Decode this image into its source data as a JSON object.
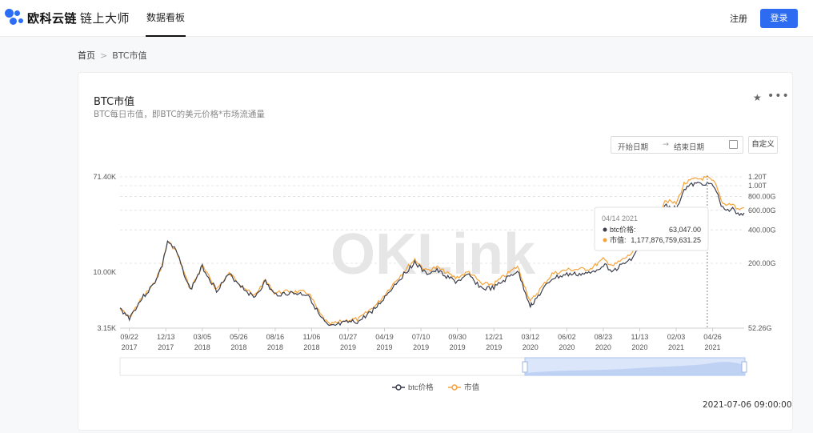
{
  "header": {
    "logo_text": "欧科云链",
    "logo_sub": "链上大师",
    "nav_tab": "数据看板",
    "register_label": "注册",
    "login_label": "登录"
  },
  "breadcrumb": {
    "home": "首页",
    "separator": ">",
    "current": "BTC市值"
  },
  "card": {
    "title": "BTC市值",
    "subtitle": "BTC每日市值，即BTC的美元价格*市场流通量",
    "date_start_placeholder": "开始日期",
    "date_arrow": "→",
    "date_end_placeholder": "结束日期",
    "custom_label": "自定义",
    "timestamp": "2021-07-06 09:00:00",
    "watermark": "OKLink"
  },
  "colors": {
    "accent": "#2d6bf0",
    "btc_price": "#3b3f4f",
    "market_cap": "#f5a33a"
  },
  "chart_data": {
    "type": "line",
    "log_scale": true,
    "grid": "horizontal-dashed",
    "legend_position": "bottom-center",
    "y_left": {
      "ticks": [
        "71.40K",
        "10.00K",
        "3.15K"
      ],
      "range": [
        3150,
        71400
      ]
    },
    "y_right": {
      "ticks": [
        "1.20T",
        "1.00T",
        "800.00G",
        "600.00G",
        "400.00G",
        "200.00G",
        "52.26G"
      ],
      "range": [
        52.26,
        1200
      ]
    },
    "x_ticks": [
      {
        "d": "09/22",
        "y": "2017"
      },
      {
        "d": "12/13",
        "y": "2017"
      },
      {
        "d": "03/05",
        "y": "2018"
      },
      {
        "d": "05/26",
        "y": "2018"
      },
      {
        "d": "08/16",
        "y": "2018"
      },
      {
        "d": "11/06",
        "y": "2018"
      },
      {
        "d": "01/27",
        "y": "2019"
      },
      {
        "d": "04/19",
        "y": "2019"
      },
      {
        "d": "07/10",
        "y": "2019"
      },
      {
        "d": "09/30",
        "y": "2019"
      },
      {
        "d": "12/21",
        "y": "2019"
      },
      {
        "d": "03/12",
        "y": "2020"
      },
      {
        "d": "06/02",
        "y": "2020"
      },
      {
        "d": "08/23",
        "y": "2020"
      },
      {
        "d": "11/13",
        "y": "2020"
      },
      {
        "d": "02/03",
        "y": "2021"
      },
      {
        "d": "04/26",
        "y": "2021"
      }
    ],
    "series": [
      {
        "name": "btc价格",
        "x": [
          "2017-09-01",
          "2017-09-22",
          "2017-10-20",
          "2017-11-15",
          "2017-12-05",
          "2017-12-17",
          "2018-01-05",
          "2018-02-06",
          "2018-03-05",
          "2018-04-06",
          "2018-05-05",
          "2018-06-29",
          "2018-07-25",
          "2018-08-14",
          "2018-09-20",
          "2018-10-30",
          "2018-11-25",
          "2018-12-15",
          "2019-01-27",
          "2019-02-20",
          "2019-04-02",
          "2019-05-15",
          "2019-06-26",
          "2019-07-20",
          "2019-08-15",
          "2019-09-26",
          "2019-10-26",
          "2019-11-25",
          "2019-12-21",
          "2020-02-12",
          "2020-03-12",
          "2020-03-16",
          "2020-04-30",
          "2020-06-02",
          "2020-07-25",
          "2020-08-23",
          "2020-09-15",
          "2020-10-21",
          "2020-11-13",
          "2020-12-17",
          "2021-01-08",
          "2021-02-03",
          "2021-02-21",
          "2021-03-13",
          "2021-04-14",
          "2021-05-01",
          "2021-05-19",
          "2021-06-10",
          "2021-06-22",
          "2021-07-06"
        ],
        "values": [
          4700,
          3900,
          5800,
          7700,
          11500,
          19000,
          15500,
          6900,
          11200,
          6900,
          9500,
          5900,
          8200,
          6300,
          6500,
          6300,
          4000,
          3200,
          3550,
          3600,
          4900,
          8000,
          12300,
          9700,
          10300,
          8200,
          9300,
          7100,
          7200,
          10300,
          5000,
          5200,
          8800,
          9500,
          9700,
          11700,
          10300,
          12800,
          16300,
          22000,
          40000,
          37000,
          56000,
          61000,
          63047,
          57000,
          37000,
          36500,
          32500,
          34000
        ]
      },
      {
        "name": "市值",
        "x": [
          "2017-09-01",
          "2017-09-22",
          "2017-10-20",
          "2017-11-15",
          "2017-12-05",
          "2017-12-17",
          "2018-01-05",
          "2018-02-06",
          "2018-03-05",
          "2018-04-06",
          "2018-05-05",
          "2018-06-29",
          "2018-07-25",
          "2018-08-14",
          "2018-09-20",
          "2018-10-30",
          "2018-11-25",
          "2018-12-15",
          "2019-01-27",
          "2019-02-20",
          "2019-04-02",
          "2019-05-15",
          "2019-06-26",
          "2019-07-20",
          "2019-08-15",
          "2019-09-26",
          "2019-10-26",
          "2019-11-25",
          "2019-12-21",
          "2020-02-12",
          "2020-03-12",
          "2020-03-16",
          "2020-04-30",
          "2020-06-02",
          "2020-07-25",
          "2020-08-23",
          "2020-09-15",
          "2020-10-21",
          "2020-11-13",
          "2020-12-17",
          "2021-01-08",
          "2021-02-03",
          "2021-02-21",
          "2021-03-13",
          "2021-04-14",
          "2021-05-01",
          "2021-05-19",
          "2021-06-10",
          "2021-06-22",
          "2021-07-06"
        ],
        "values": [
          78,
          65,
          97,
          128,
          192,
          318,
          260,
          116,
          189,
          117,
          162,
          101,
          141,
          109,
          112,
          109,
          70,
          56,
          62,
          63,
          86,
          141,
          218,
          173,
          184,
          148,
          168,
          129,
          131,
          188,
          91,
          95,
          161,
          175,
          179,
          217,
          191,
          237,
          302,
          408,
          742,
          690,
          1040,
          1135,
          1177.88,
          1060,
          690,
          680,
          610,
          635
        ]
      }
    ],
    "tooltip": {
      "date": "04/14 2021",
      "rows": [
        {
          "label": "btc价格:",
          "value": "63,047.00"
        },
        {
          "label": "市值:",
          "value": "1,177,876,759,631.25"
        }
      ]
    }
  }
}
